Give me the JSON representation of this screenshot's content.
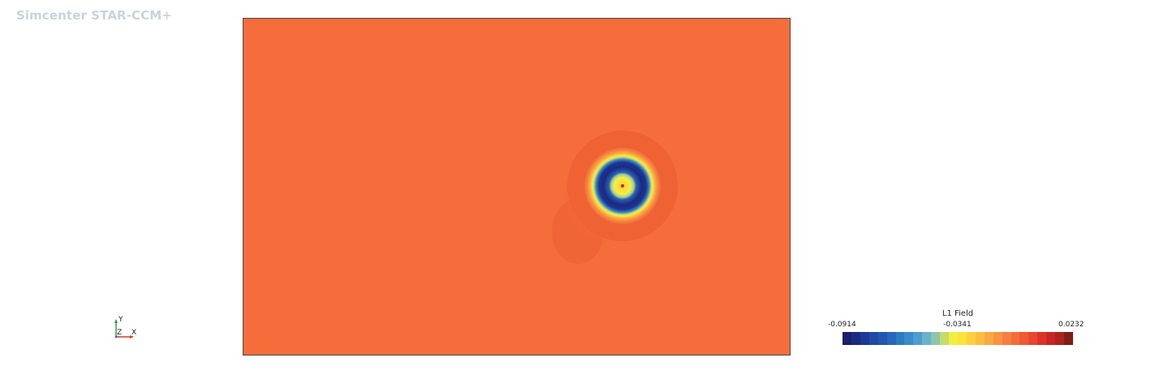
{
  "app": {
    "brand": "Simcenter STAR-CCM+"
  },
  "scene": {
    "background_color": "#f46d3b",
    "frame_color": "#4a4a4a",
    "field": "L1 Field"
  },
  "triad": {
    "y_label": "Y",
    "z_label": "Z",
    "x_label": "X",
    "y_color": "#2a9a3a",
    "x_color": "#d43a3a",
    "z_color": "#3a5fd4"
  },
  "legend": {
    "title": "L1 Field",
    "min_label": "-0.0914",
    "mid_label": "-0.0341",
    "max_label": "0.0232",
    "colors": [
      "#1a1e6e",
      "#1c2a82",
      "#1d3a93",
      "#1f4aa3",
      "#2058b0",
      "#2667bb",
      "#2f78c4",
      "#3b8acb",
      "#4d9dd0",
      "#6bb2c9",
      "#8fc6a9",
      "#c2dd6b",
      "#f2ef3c",
      "#fbe33c",
      "#fcd13e",
      "#fbbe40",
      "#f9a941",
      "#f79442",
      "#f57f41",
      "#f46d3b",
      "#ef5a35",
      "#e8462f",
      "#dc3329",
      "#c92623",
      "#a8241d",
      "#7e1e14"
    ]
  }
}
